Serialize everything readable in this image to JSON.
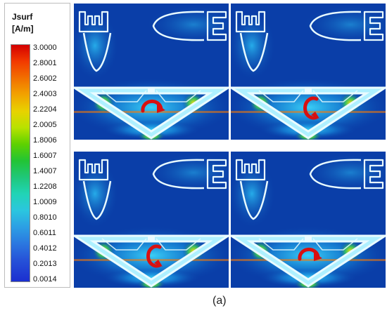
{
  "legend": {
    "title": "Jsurf",
    "unit": "[A/m]",
    "ticks": [
      "3.0000",
      "2.8001",
      "2.6002",
      "2.4003",
      "2.2204",
      "2.0005",
      "1.8006",
      "1.6007",
      "1.4007",
      "1.2208",
      "1.0009",
      "0.8010",
      "0.6011",
      "0.4012",
      "0.2013",
      "0.0014"
    ]
  },
  "panels": [
    {
      "name": "top-left",
      "arrow": "clockwise"
    },
    {
      "name": "top-right",
      "arrow": "counterclockwise"
    },
    {
      "name": "bottom-left",
      "arrow": "counterclockwise"
    },
    {
      "name": "bottom-right",
      "arrow": "clockwise"
    }
  ],
  "colors": {
    "background": "#0a3ea8",
    "conductor": "#e9fbff",
    "hotspot": "#d81010"
  },
  "caption": "(a)"
}
